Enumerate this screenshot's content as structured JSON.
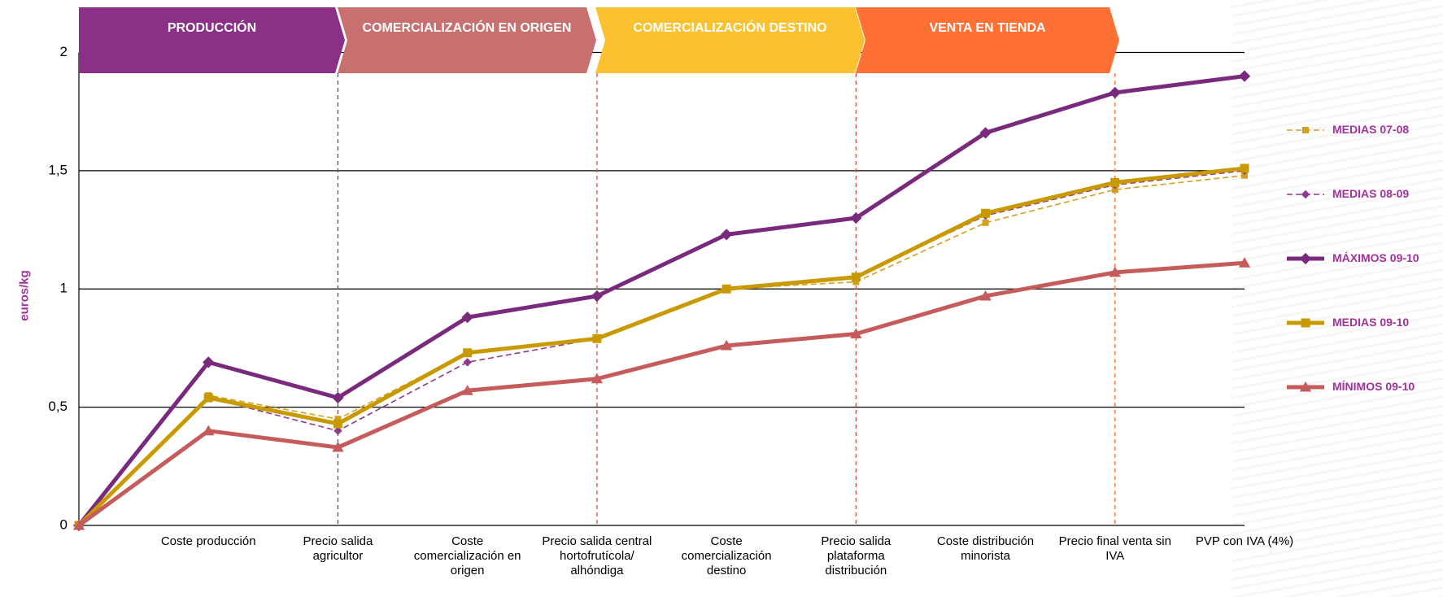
{
  "chart_data": {
    "type": "line",
    "y_label": "euros/kg",
    "stages": [
      {
        "label": "PRODUCCIÓN",
        "color": "#8B2F87"
      },
      {
        "label": "COMERCIALIZACIÓN EN ORIGEN",
        "color": "#C7706F"
      },
      {
        "label": "COMERCIALIZACIÓN DESTINO",
        "color": "#FCC12E"
      },
      {
        "label": "VENTA EN TIENDA",
        "color": "#FF7035"
      }
    ],
    "categories": [
      null,
      "Coste producción",
      "Precio salida agricultor",
      "Coste comercialización en origen",
      "Precio salida central hortofrutícola/ alhóndiga",
      "Coste comercialización destino",
      "Precio salida plataforma distribución",
      "Coste distribución minorista",
      "Precio final venta sin IVA",
      "PVP con IVA (4%)"
    ],
    "series": [
      {
        "name": "MEDIAS 07-08",
        "color": "#D4A020",
        "dashed": true,
        "marker": "square",
        "values": [
          0,
          0.55,
          0.45,
          0.73,
          0.79,
          1.0,
          1.03,
          1.28,
          1.42,
          1.48
        ]
      },
      {
        "name": "MEDIAS 08-09",
        "color": "#8E3A8C",
        "dashed": true,
        "marker": "diamond",
        "values": [
          0,
          0.54,
          0.4,
          0.69,
          0.79,
          1.0,
          1.05,
          1.31,
          1.44,
          1.5
        ]
      },
      {
        "name": "MÁXIMOS 09-10",
        "color": "#7A2A7C",
        "dashed": false,
        "marker": "diamond",
        "values": [
          0,
          0.69,
          0.54,
          0.88,
          0.97,
          1.23,
          1.3,
          1.66,
          1.83,
          1.9
        ]
      },
      {
        "name": "MEDIAS 09-10",
        "color": "#C99A00",
        "dashed": false,
        "marker": "square",
        "values": [
          0,
          0.54,
          0.43,
          0.73,
          0.79,
          1.0,
          1.05,
          1.32,
          1.45,
          1.51
        ]
      },
      {
        "name": "MÍNIMOS 09-10",
        "color": "#C55B5B",
        "dashed": false,
        "marker": "triangle",
        "values": [
          0,
          0.4,
          0.33,
          0.57,
          0.62,
          0.76,
          0.81,
          0.97,
          1.07,
          1.11
        ]
      }
    ],
    "ylim": [
      0,
      2
    ],
    "yticks": [
      0,
      {
        "value": 0.5,
        "label": "0,5"
      },
      1,
      {
        "value": 1.5,
        "label": "1,5"
      },
      2
    ],
    "grid": true
  }
}
